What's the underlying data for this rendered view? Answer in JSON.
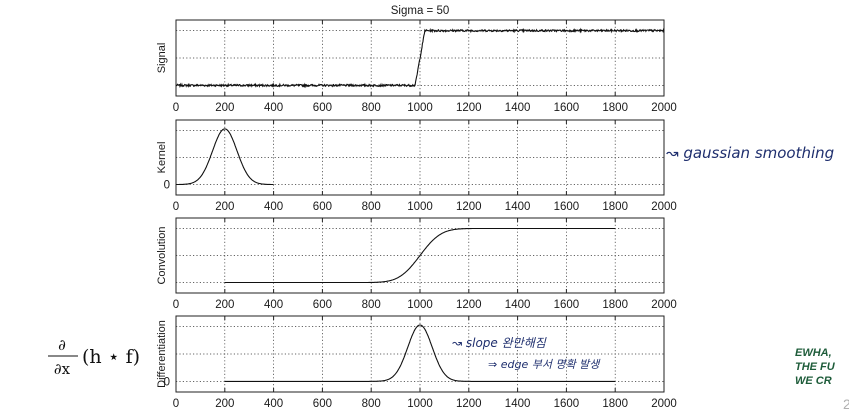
{
  "title": "Sigma = 50",
  "formula": {
    "num": "∂",
    "den": "∂x",
    "rest": "(h ⋆ f)"
  },
  "annotations": {
    "kernel_note": "↝ gaussian smoothing",
    "diff_note_1": "↝ slope 완만해짐",
    "diff_note_2": "⇒ edge 부서 명확 발생"
  },
  "logo": {
    "lines": [
      "EWHA,",
      "THE FU",
      "WE CR"
    ]
  },
  "page_number": "2",
  "chart_data": [
    {
      "type": "line",
      "ylabel": "Signal",
      "xlim": [
        0,
        2000
      ],
      "x_ticks": [
        0,
        200,
        400,
        600,
        800,
        1000,
        1200,
        1400,
        1600,
        1800,
        2000
      ],
      "grid": true,
      "description": "noisy step from low level to high level at x≈1000",
      "x": [
        0,
        980,
        1000,
        1020,
        2000
      ],
      "y": [
        0.05,
        0.05,
        0.5,
        0.95,
        0.95
      ]
    },
    {
      "type": "line",
      "ylabel": "Kernel",
      "xlim": [
        0,
        2000
      ],
      "x_ticks": [
        0,
        200,
        400,
        600,
        800,
        1000,
        1200,
        1400,
        1600,
        1800,
        2000
      ],
      "y_ticks": [
        0
      ],
      "grid": true,
      "description": "gaussian kernel centered at x=200, sigma=50",
      "center": 200,
      "sigma": 50,
      "x_range": [
        0,
        400
      ]
    },
    {
      "type": "line",
      "ylabel": "Convolution",
      "xlim": [
        0,
        2000
      ],
      "x_ticks": [
        0,
        200,
        400,
        600,
        800,
        1000,
        1200,
        1400,
        1600,
        1800,
        2000
      ],
      "grid": true,
      "description": "smoothed step rising around x=1000",
      "center": 1000,
      "sigma": 50,
      "x_range": [
        200,
        1800
      ]
    },
    {
      "type": "line",
      "ylabel": "Differentiation",
      "xlim": [
        0,
        2000
      ],
      "x_ticks": [
        0,
        200,
        400,
        600,
        800,
        1000,
        1200,
        1400,
        1600,
        1800,
        2000
      ],
      "y_ticks": [
        0
      ],
      "grid": true,
      "description": "gaussian-shaped peak at x=1000 (edge location)",
      "center": 1000,
      "sigma": 50,
      "x_range": [
        200,
        1800
      ]
    }
  ]
}
